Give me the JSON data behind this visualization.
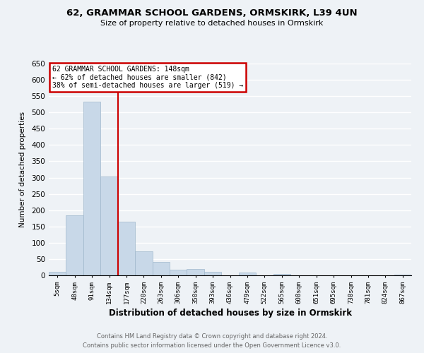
{
  "title1": "62, GRAMMAR SCHOOL GARDENS, ORMSKIRK, L39 4UN",
  "title2": "Size of property relative to detached houses in Ormskirk",
  "xlabel": "Distribution of detached houses by size in Ormskirk",
  "ylabel": "Number of detached properties",
  "bin_labels": [
    "5sqm",
    "48sqm",
    "91sqm",
    "134sqm",
    "177sqm",
    "220sqm",
    "263sqm",
    "306sqm",
    "350sqm",
    "393sqm",
    "436sqm",
    "479sqm",
    "522sqm",
    "565sqm",
    "608sqm",
    "651sqm",
    "695sqm",
    "738sqm",
    "781sqm",
    "824sqm",
    "867sqm"
  ],
  "bar_values": [
    10,
    185,
    533,
    303,
    165,
    73,
    42,
    17,
    20,
    11,
    0,
    9,
    0,
    4,
    0,
    1,
    0,
    0,
    0,
    0,
    2
  ],
  "bar_color": "#c8d8e8",
  "bar_edgecolor": "#a0b8cc",
  "vline_x": 3.5,
  "vline_color": "#cc0000",
  "ylim": [
    0,
    650
  ],
  "yticks": [
    0,
    50,
    100,
    150,
    200,
    250,
    300,
    350,
    400,
    450,
    500,
    550,
    600,
    650
  ],
  "annotation_title": "62 GRAMMAR SCHOOL GARDENS: 148sqm",
  "annotation_line1": "← 62% of detached houses are smaller (842)",
  "annotation_line2": "38% of semi-detached houses are larger (519) →",
  "annotation_box_color": "#ffffff",
  "annotation_border_color": "#cc0000",
  "footer1": "Contains HM Land Registry data © Crown copyright and database right 2024.",
  "footer2": "Contains public sector information licensed under the Open Government Licence v3.0.",
  "background_color": "#eef2f6",
  "grid_color": "#ffffff"
}
